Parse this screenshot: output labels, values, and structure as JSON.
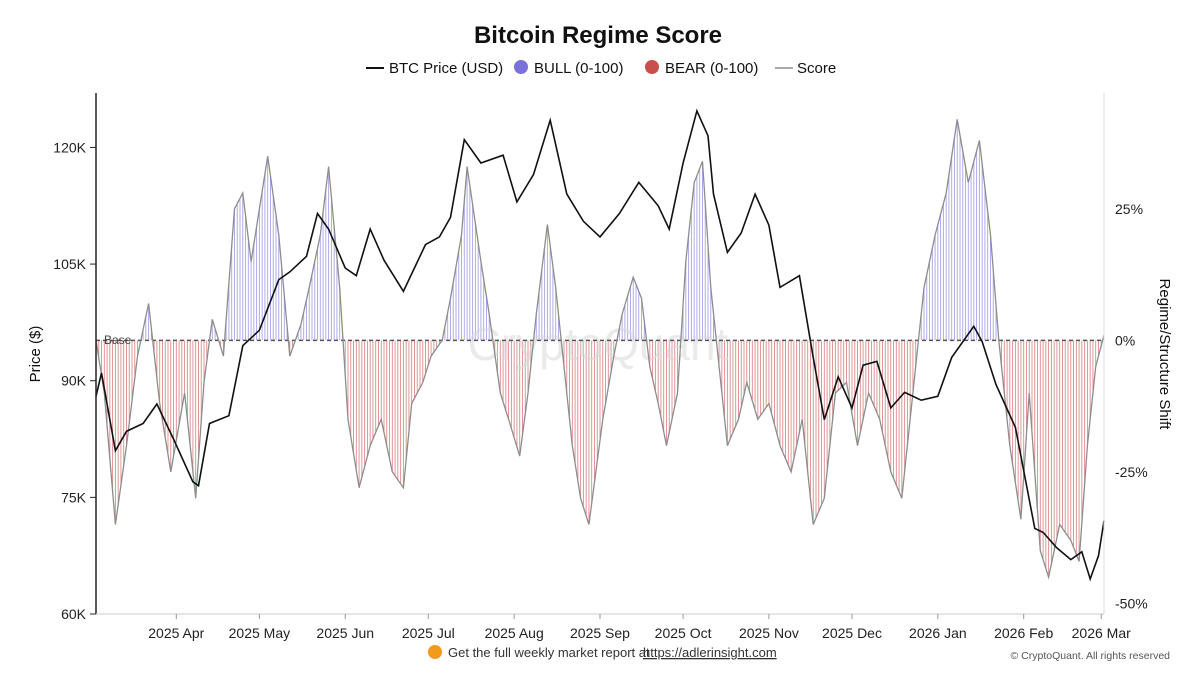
{
  "colors": {
    "price": "#111111",
    "bull_fill": "#c9c6ef",
    "bull_line": "#7a72d8",
    "bear_fill": "#f3d3d3",
    "bear_line": "#c94e4e",
    "score": "#8d8d8d",
    "base": "#555555",
    "footer_dot": "#f29a1b"
  },
  "footer": {
    "text": "Get the full weekly market report at",
    "link": "https://adlerinsight.com",
    "icon": "orange-circle-icon",
    "copyright": "© CryptoQuant. All rights reserved"
  },
  "watermark": "CryptoQuant",
  "chart_data": {
    "type": "line",
    "title": "Bitcoin Regime Score",
    "legend": {
      "position": "top-center",
      "items": [
        {
          "label": "BTC Price (USD)",
          "kind": "line"
        },
        {
          "label": "BULL (0-100)",
          "kind": "dot"
        },
        {
          "label": "BEAR (0-100)",
          "kind": "dot"
        },
        {
          "label": "Score",
          "kind": "line"
        }
      ]
    },
    "ylabel_left": "Price ($)",
    "ylabel_right": "Regime/Structure Shift",
    "ylim_left": [
      60000,
      127000
    ],
    "ylim_right": [
      -52,
      47
    ],
    "left_ticks": [
      {
        "value": 60000,
        "label": "60K"
      },
      {
        "value": 75000,
        "label": "75K"
      },
      {
        "value": 90000,
        "label": "90K"
      },
      {
        "value": 105000,
        "label": "105K"
      },
      {
        "value": 120000,
        "label": "120K"
      }
    ],
    "right_ticks": [
      {
        "value": -50,
        "label": "-50%"
      },
      {
        "value": -25,
        "label": "-25%"
      },
      {
        "value": 0,
        "label": "0%"
      },
      {
        "value": 25,
        "label": "25%"
      }
    ],
    "x_ticks": [
      {
        "label": "2025 Apr",
        "x": "2025-04-01"
      },
      {
        "label": "2025 May",
        "x": "2025-05-01"
      },
      {
        "label": "2025 Jun",
        "x": "2025-06-01"
      },
      {
        "label": "2025 Jul",
        "x": "2025-07-01"
      },
      {
        "label": "2025 Aug",
        "x": "2025-08-01"
      },
      {
        "label": "2025 Sep",
        "x": "2025-09-01"
      },
      {
        "label": "2025 Oct",
        "x": "2025-10-01"
      },
      {
        "label": "2025 Nov",
        "x": "2025-11-01"
      },
      {
        "label": "2025 Dec",
        "x": "2025-12-01"
      },
      {
        "label": "2026 Jan",
        "x": "2026-01-01"
      },
      {
        "label": "2026 Feb",
        "x": "2026-02-01"
      },
      {
        "label": "2026 Mar",
        "x": "2026-03-01"
      }
    ],
    "xlim": [
      "2025-03-03",
      "2026-03-02"
    ],
    "base_label": "Base",
    "base_value": 0,
    "grid": false,
    "price": [
      {
        "x": "2025-03-03",
        "y": 88000
      },
      {
        "x": "2025-03-05",
        "y": 91000
      },
      {
        "x": "2025-03-10",
        "y": 81000
      },
      {
        "x": "2025-03-14",
        "y": 83500
      },
      {
        "x": "2025-03-20",
        "y": 84500
      },
      {
        "x": "2025-03-25",
        "y": 87000
      },
      {
        "x": "2025-03-31",
        "y": 82500
      },
      {
        "x": "2025-04-07",
        "y": 77000
      },
      {
        "x": "2025-04-09",
        "y": 76500
      },
      {
        "x": "2025-04-13",
        "y": 84500
      },
      {
        "x": "2025-04-20",
        "y": 85500
      },
      {
        "x": "2025-04-25",
        "y": 94500
      },
      {
        "x": "2025-05-01",
        "y": 96500
      },
      {
        "x": "2025-05-08",
        "y": 103000
      },
      {
        "x": "2025-05-12",
        "y": 104000
      },
      {
        "x": "2025-05-18",
        "y": 106000
      },
      {
        "x": "2025-05-22",
        "y": 111500
      },
      {
        "x": "2025-05-26",
        "y": 109500
      },
      {
        "x": "2025-06-01",
        "y": 104500
      },
      {
        "x": "2025-06-05",
        "y": 103500
      },
      {
        "x": "2025-06-10",
        "y": 109500
      },
      {
        "x": "2025-06-15",
        "y": 105500
      },
      {
        "x": "2025-06-22",
        "y": 101500
      },
      {
        "x": "2025-06-30",
        "y": 107500
      },
      {
        "x": "2025-07-05",
        "y": 108500
      },
      {
        "x": "2025-07-09",
        "y": 111000
      },
      {
        "x": "2025-07-14",
        "y": 121000
      },
      {
        "x": "2025-07-20",
        "y": 118000
      },
      {
        "x": "2025-07-28",
        "y": 119000
      },
      {
        "x": "2025-08-02",
        "y": 113000
      },
      {
        "x": "2025-08-08",
        "y": 116500
      },
      {
        "x": "2025-08-14",
        "y": 123500
      },
      {
        "x": "2025-08-20",
        "y": 114000
      },
      {
        "x": "2025-08-26",
        "y": 110500
      },
      {
        "x": "2025-09-01",
        "y": 108500
      },
      {
        "x": "2025-09-08",
        "y": 111500
      },
      {
        "x": "2025-09-15",
        "y": 115500
      },
      {
        "x": "2025-09-22",
        "y": 112500
      },
      {
        "x": "2025-09-26",
        "y": 109500
      },
      {
        "x": "2025-10-01",
        "y": 118000
      },
      {
        "x": "2025-10-06",
        "y": 124700
      },
      {
        "x": "2025-10-10",
        "y": 121500
      },
      {
        "x": "2025-10-12",
        "y": 114000
      },
      {
        "x": "2025-10-17",
        "y": 106500
      },
      {
        "x": "2025-10-22",
        "y": 109000
      },
      {
        "x": "2025-10-27",
        "y": 114000
      },
      {
        "x": "2025-11-01",
        "y": 110000
      },
      {
        "x": "2025-11-05",
        "y": 102000
      },
      {
        "x": "2025-11-12",
        "y": 103500
      },
      {
        "x": "2025-11-17",
        "y": 93000
      },
      {
        "x": "2025-11-21",
        "y": 85000
      },
      {
        "x": "2025-11-26",
        "y": 90500
      },
      {
        "x": "2025-12-01",
        "y": 86500
      },
      {
        "x": "2025-12-05",
        "y": 92000
      },
      {
        "x": "2025-12-10",
        "y": 92500
      },
      {
        "x": "2025-12-15",
        "y": 86500
      },
      {
        "x": "2025-12-20",
        "y": 88500
      },
      {
        "x": "2025-12-26",
        "y": 87500
      },
      {
        "x": "2026-01-01",
        "y": 88000
      },
      {
        "x": "2026-01-06",
        "y": 93000
      },
      {
        "x": "2026-01-14",
        "y": 97000
      },
      {
        "x": "2026-01-17",
        "y": 95000
      },
      {
        "x": "2026-01-22",
        "y": 89500
      },
      {
        "x": "2026-01-29",
        "y": 84000
      },
      {
        "x": "2026-02-05",
        "y": 71000
      },
      {
        "x": "2026-02-08",
        "y": 70500
      },
      {
        "x": "2026-02-13",
        "y": 68500
      },
      {
        "x": "2026-02-18",
        "y": 67000
      },
      {
        "x": "2026-02-22",
        "y": 68000
      },
      {
        "x": "2026-02-25",
        "y": 64500
      },
      {
        "x": "2026-02-28",
        "y": 67500
      },
      {
        "x": "2026-03-02",
        "y": 72000
      }
    ],
    "score": [
      {
        "x": "2025-03-03",
        "y": 0
      },
      {
        "x": "2025-03-06",
        "y": -10
      },
      {
        "x": "2025-03-10",
        "y": -35
      },
      {
        "x": "2025-03-14",
        "y": -20
      },
      {
        "x": "2025-03-18",
        "y": -3
      },
      {
        "x": "2025-03-22",
        "y": 7
      },
      {
        "x": "2025-03-26",
        "y": -12
      },
      {
        "x": "2025-03-30",
        "y": -25
      },
      {
        "x": "2025-04-04",
        "y": -10
      },
      {
        "x": "2025-04-08",
        "y": -30
      },
      {
        "x": "2025-04-11",
        "y": -8
      },
      {
        "x": "2025-04-14",
        "y": 4
      },
      {
        "x": "2025-04-18",
        "y": -3
      },
      {
        "x": "2025-04-22",
        "y": 25
      },
      {
        "x": "2025-04-25",
        "y": 28
      },
      {
        "x": "2025-04-28",
        "y": 15
      },
      {
        "x": "2025-05-01",
        "y": 25
      },
      {
        "x": "2025-05-04",
        "y": 35
      },
      {
        "x": "2025-05-08",
        "y": 20
      },
      {
        "x": "2025-05-12",
        "y": -3
      },
      {
        "x": "2025-05-16",
        "y": 3
      },
      {
        "x": "2025-05-19",
        "y": 10
      },
      {
        "x": "2025-05-23",
        "y": 20
      },
      {
        "x": "2025-05-26",
        "y": 33
      },
      {
        "x": "2025-05-30",
        "y": 10
      },
      {
        "x": "2025-06-02",
        "y": -15
      },
      {
        "x": "2025-06-06",
        "y": -28
      },
      {
        "x": "2025-06-10",
        "y": -20
      },
      {
        "x": "2025-06-14",
        "y": -15
      },
      {
        "x": "2025-06-18",
        "y": -25
      },
      {
        "x": "2025-06-22",
        "y": -28
      },
      {
        "x": "2025-06-25",
        "y": -12
      },
      {
        "x": "2025-06-29",
        "y": -8
      },
      {
        "x": "2025-07-02",
        "y": -3
      },
      {
        "x": "2025-07-06",
        "y": 0
      },
      {
        "x": "2025-07-09",
        "y": 8
      },
      {
        "x": "2025-07-13",
        "y": 20
      },
      {
        "x": "2025-07-15",
        "y": 33
      },
      {
        "x": "2025-07-20",
        "y": 15
      },
      {
        "x": "2025-07-23",
        "y": 5
      },
      {
        "x": "2025-07-27",
        "y": -10
      },
      {
        "x": "2025-07-30",
        "y": -15
      },
      {
        "x": "2025-08-03",
        "y": -22
      },
      {
        "x": "2025-08-06",
        "y": -10
      },
      {
        "x": "2025-08-09",
        "y": 5
      },
      {
        "x": "2025-08-13",
        "y": 22
      },
      {
        "x": "2025-08-16",
        "y": 10
      },
      {
        "x": "2025-08-19",
        "y": -5
      },
      {
        "x": "2025-08-22",
        "y": -20
      },
      {
        "x": "2025-08-25",
        "y": -30
      },
      {
        "x": "2025-08-28",
        "y": -35
      },
      {
        "x": "2025-09-02",
        "y": -15
      },
      {
        "x": "2025-09-06",
        "y": -3
      },
      {
        "x": "2025-09-09",
        "y": 5
      },
      {
        "x": "2025-09-13",
        "y": 12
      },
      {
        "x": "2025-09-16",
        "y": 8
      },
      {
        "x": "2025-09-19",
        "y": -5
      },
      {
        "x": "2025-09-22",
        "y": -12
      },
      {
        "x": "2025-09-25",
        "y": -20
      },
      {
        "x": "2025-09-29",
        "y": -10
      },
      {
        "x": "2025-10-02",
        "y": 15
      },
      {
        "x": "2025-10-05",
        "y": 30
      },
      {
        "x": "2025-10-08",
        "y": 34
      },
      {
        "x": "2025-10-11",
        "y": 10
      },
      {
        "x": "2025-10-14",
        "y": -5
      },
      {
        "x": "2025-10-17",
        "y": -20
      },
      {
        "x": "2025-10-21",
        "y": -15
      },
      {
        "x": "2025-10-24",
        "y": -8
      },
      {
        "x": "2025-10-28",
        "y": -15
      },
      {
        "x": "2025-11-01",
        "y": -12
      },
      {
        "x": "2025-11-05",
        "y": -20
      },
      {
        "x": "2025-11-09",
        "y": -25
      },
      {
        "x": "2025-11-13",
        "y": -15
      },
      {
        "x": "2025-11-17",
        "y": -35
      },
      {
        "x": "2025-11-21",
        "y": -30
      },
      {
        "x": "2025-11-25",
        "y": -10
      },
      {
        "x": "2025-11-29",
        "y": -8
      },
      {
        "x": "2025-12-03",
        "y": -20
      },
      {
        "x": "2025-12-07",
        "y": -10
      },
      {
        "x": "2025-12-11",
        "y": -15
      },
      {
        "x": "2025-12-15",
        "y": -25
      },
      {
        "x": "2025-12-19",
        "y": -30
      },
      {
        "x": "2025-12-23",
        "y": -10
      },
      {
        "x": "2025-12-27",
        "y": 10
      },
      {
        "x": "2025-12-31",
        "y": 20
      },
      {
        "x": "2026-01-04",
        "y": 28
      },
      {
        "x": "2026-01-08",
        "y": 42
      },
      {
        "x": "2026-01-12",
        "y": 30
      },
      {
        "x": "2026-01-16",
        "y": 38
      },
      {
        "x": "2026-01-20",
        "y": 20
      },
      {
        "x": "2026-01-23",
        "y": 0
      },
      {
        "x": "2026-01-27",
        "y": -20
      },
      {
        "x": "2026-01-31",
        "y": -34
      },
      {
        "x": "2026-02-03",
        "y": -10
      },
      {
        "x": "2026-02-07",
        "y": -40
      },
      {
        "x": "2026-02-10",
        "y": -45
      },
      {
        "x": "2026-02-14",
        "y": -35
      },
      {
        "x": "2026-02-18",
        "y": -38
      },
      {
        "x": "2026-02-21",
        "y": -42
      },
      {
        "x": "2026-02-24",
        "y": -20
      },
      {
        "x": "2026-02-27",
        "y": -5
      },
      {
        "x": "2026-03-02",
        "y": 1
      }
    ]
  }
}
